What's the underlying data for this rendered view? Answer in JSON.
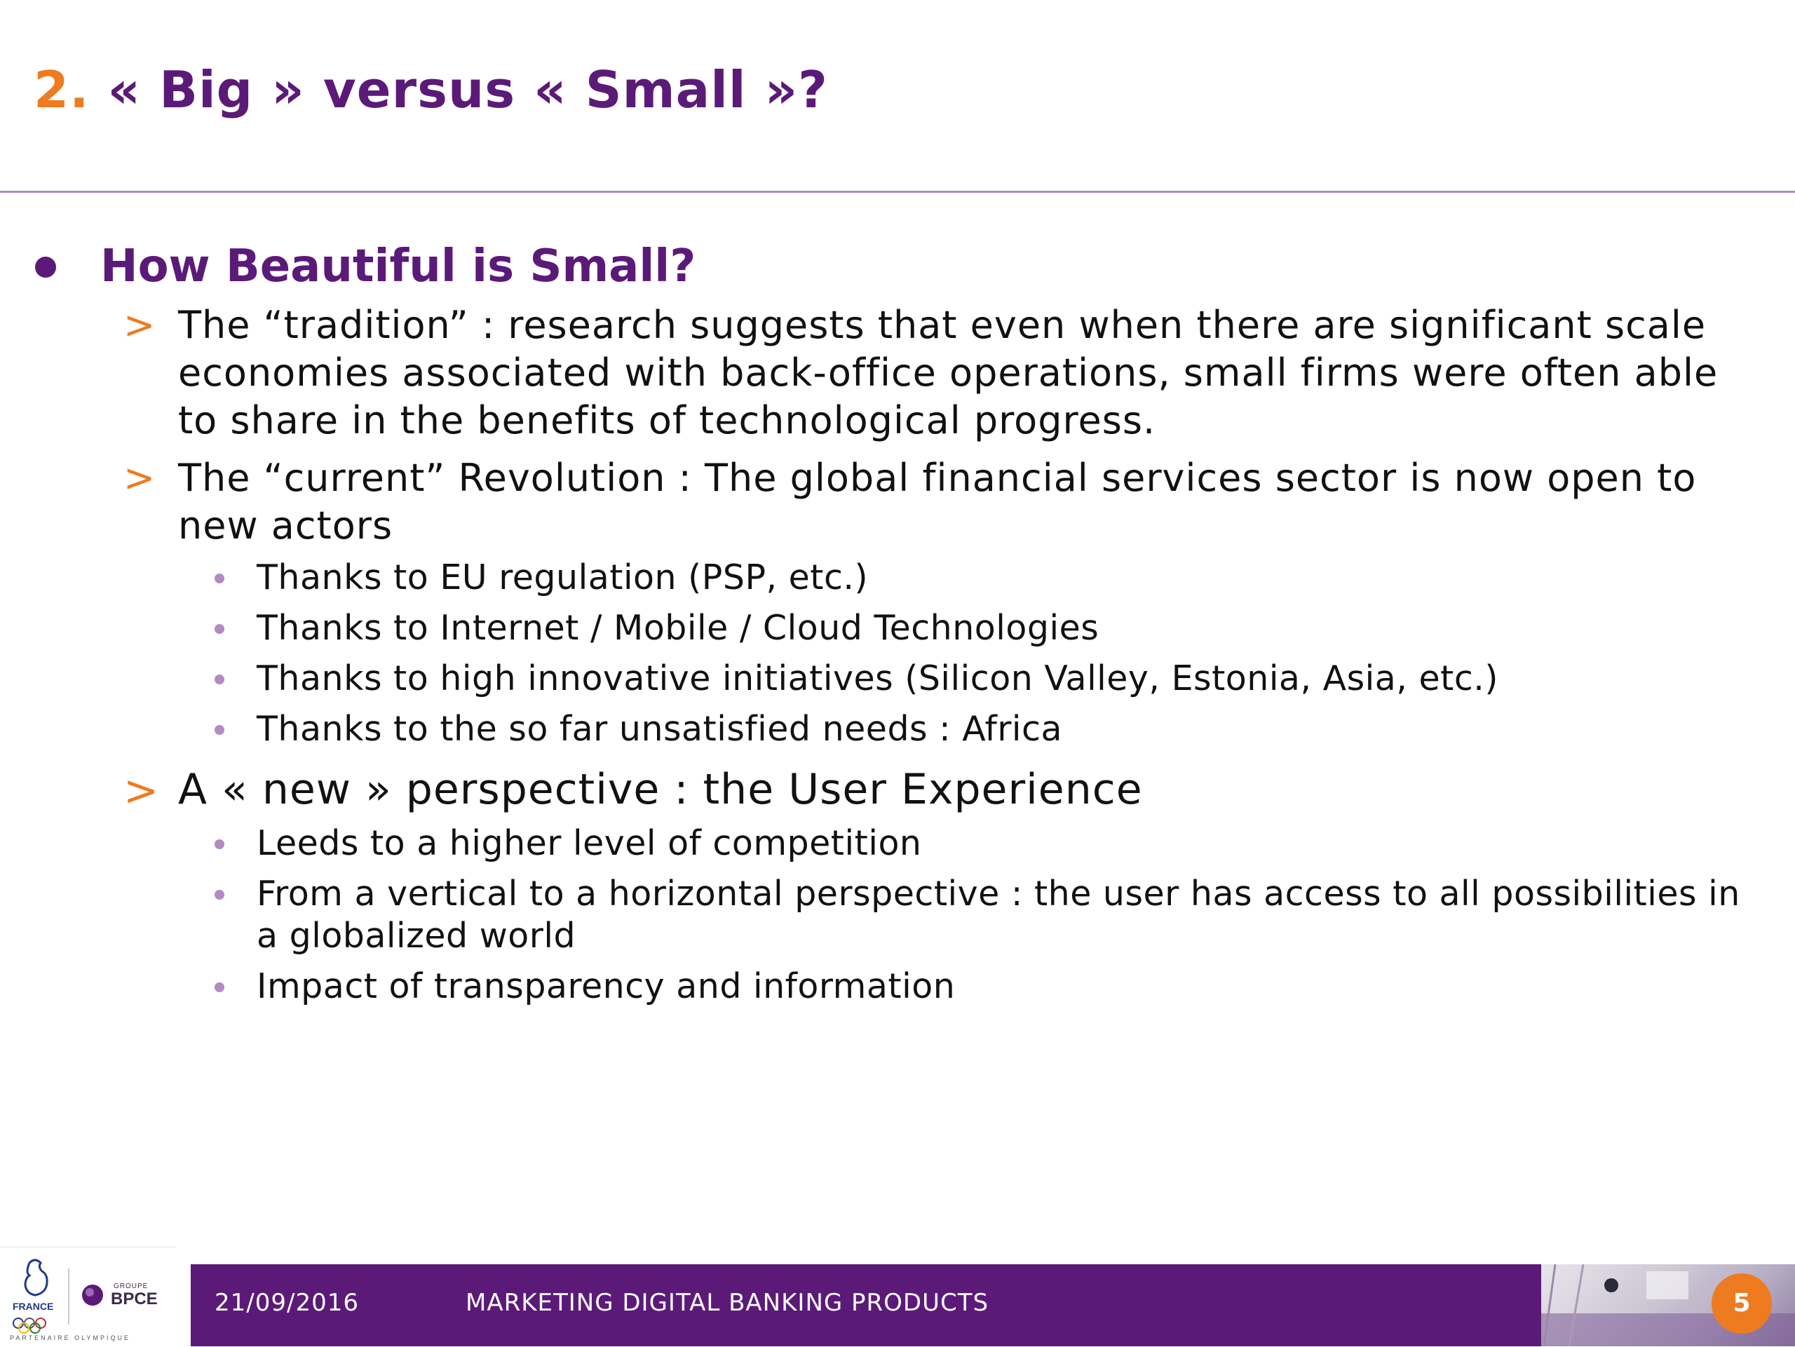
{
  "slide": {
    "title_number": "2.",
    "title_text": " « Big » versus « Small »?",
    "heading": "How Beautiful is Small?",
    "points": [
      {
        "text": "The “tradition” : research suggests that even when there are significant scale economies associated with back-office operations, small firms were often able to share in the benefits of technological progress."
      },
      {
        "text": "The “current” Revolution : The global financial services sector is now open to new actors",
        "subpoints": [
          "Thanks to EU regulation (PSP, etc.)",
          "Thanks to Internet / Mobile / Cloud Technologies",
          "Thanks to high innovative initiatives (Silicon Valley, Estonia, Asia, etc.)",
          "Thanks to the so far unsatisfied needs : Africa"
        ]
      },
      {
        "text": "A « new » perspective : the User Experience",
        "subpoints": [
          "Leeds to a higher level of competition",
          "From a vertical to a horizontal perspective : the user has access to all possibilities in a globalized world",
          "Impact of transparency and information"
        ]
      }
    ],
    "marker": ">"
  },
  "footer": {
    "date": "21/09/2016",
    "title": "MARKETING DIGITAL BANKING PRODUCTS",
    "page_number": "5",
    "logo_france": "FRANCE",
    "logo_groupe": "GROUPE",
    "logo_bpce": "BPCE",
    "partner": "PARTENAIRE OLYMPIQUE"
  },
  "colors": {
    "purple": "#5b1a78",
    "orange": "#ee7b1f",
    "lilac": "#b489c4"
  },
  "icons": {
    "level1_bullet": "filled-circle-icon",
    "level2_marker": "chevron-right-icon",
    "level3_bullet": "small-dot-icon"
  }
}
